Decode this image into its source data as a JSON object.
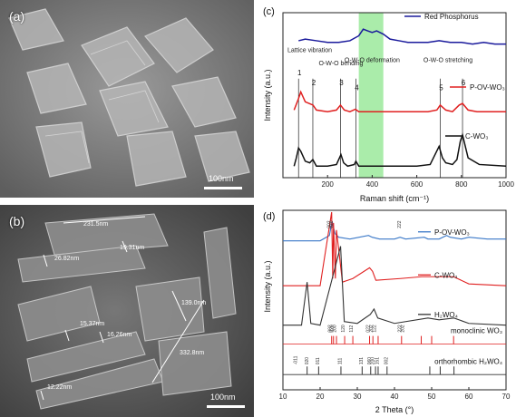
{
  "panel_a": {
    "label": "(a)",
    "scale_bar": "100nm"
  },
  "panel_b": {
    "label": "(b)",
    "scale_bar": "100nm",
    "measurements": [
      "231.5nm",
      "19.31nm",
      "26.82nm",
      "139.0nm",
      "15.37nm",
      "16.26nm",
      "332.8nm",
      "12.22nm"
    ]
  },
  "chart_data": [
    {
      "type": "line",
      "panel": "(c)",
      "xlabel": "Raman shift (cm⁻¹)",
      "ylabel": "Intensity (a.u.)",
      "xlim": [
        0,
        1000
      ],
      "xticks": [
        200,
        400,
        600,
        800,
        1000
      ],
      "highlight_range": [
        340,
        450
      ],
      "series": [
        {
          "name": "Red Phosphorus",
          "color": "#1a1a9c",
          "x": [
            70,
            100,
            150,
            200,
            250,
            300,
            340,
            360,
            380,
            400,
            420,
            450,
            480,
            520,
            560,
            600,
            650,
            700,
            750,
            800,
            850,
            900,
            950,
            1000
          ],
          "y": [
            0.83,
            0.84,
            0.83,
            0.82,
            0.82,
            0.83,
            0.86,
            0.9,
            0.89,
            0.88,
            0.89,
            0.87,
            0.84,
            0.83,
            0.82,
            0.82,
            0.82,
            0.83,
            0.82,
            0.82,
            0.81,
            0.82,
            0.81,
            0.81
          ]
        },
        {
          "name": "P-OV-WO₃",
          "color": "#e02020",
          "x": [
            50,
            70,
            80,
            100,
            135,
            150,
            200,
            240,
            258,
            275,
            300,
            325,
            340,
            400,
            500,
            600,
            650,
            690,
            705,
            730,
            760,
            790,
            805,
            830,
            870,
            920,
            1000
          ],
          "y": [
            0.41,
            0.48,
            0.52,
            0.46,
            0.44,
            0.41,
            0.4,
            0.41,
            0.44,
            0.41,
            0.4,
            0.415,
            0.4,
            0.4,
            0.4,
            0.4,
            0.4,
            0.41,
            0.44,
            0.41,
            0.4,
            0.44,
            0.45,
            0.41,
            0.4,
            0.4,
            0.4
          ]
        },
        {
          "name": "C-WO₃",
          "color": "#111111",
          "x": [
            50,
            60,
            70,
            80,
            100,
            120,
            134,
            150,
            200,
            240,
            260,
            272,
            290,
            320,
            327,
            340,
            400,
            500,
            600,
            660,
            700,
            715,
            730,
            760,
            780,
            795,
            805,
            830,
            880,
            1000
          ],
          "y": [
            0.07,
            0.12,
            0.18,
            0.16,
            0.1,
            0.09,
            0.11,
            0.07,
            0.07,
            0.08,
            0.14,
            0.09,
            0.07,
            0.08,
            0.1,
            0.07,
            0.07,
            0.07,
            0.07,
            0.08,
            0.19,
            0.12,
            0.09,
            0.08,
            0.11,
            0.22,
            0.26,
            0.12,
            0.08,
            0.07
          ]
        }
      ],
      "peaks": [
        {
          "n": "1",
          "x": 70
        },
        {
          "n": "2",
          "x": 134
        },
        {
          "n": "3",
          "x": 258
        },
        {
          "n": "4",
          "x": 327
        },
        {
          "n": "5",
          "x": 705
        },
        {
          "n": "6",
          "x": 805
        }
      ],
      "annotations": [
        "Lattice vibration",
        "O-W-O bending",
        "O-W-O deformation",
        "O-W-O stretching"
      ]
    },
    {
      "type": "line",
      "panel": "(d)",
      "xlabel": "2 Theta (°)",
      "ylabel": "Intensity (a.u.)",
      "xlim": [
        10,
        70
      ],
      "xticks": [
        10,
        20,
        30,
        40,
        50,
        60,
        70
      ],
      "series": [
        {
          "name": "P-OV-WO₃",
          "color": "#3a78c8",
          "x": [
            10,
            20,
            22.5,
            23.2,
            24,
            25,
            28,
            33,
            34,
            36,
            40,
            41.5,
            43,
            48,
            49,
            52,
            54,
            55,
            58,
            60,
            65,
            70
          ],
          "y": [
            0.83,
            0.83,
            0.86,
            0.94,
            0.87,
            0.85,
            0.84,
            0.86,
            0.85,
            0.84,
            0.84,
            0.85,
            0.84,
            0.85,
            0.84,
            0.84,
            0.86,
            0.85,
            0.84,
            0.85,
            0.84,
            0.84
          ]
        },
        {
          "name": "C-WO₃",
          "color": "#e02020",
          "x": [
            10,
            20,
            23.1,
            23.4,
            23.6,
            24.1,
            24.4,
            26,
            28.8,
            33.3,
            34.1,
            35,
            41.6,
            47.3,
            49.9,
            55.9,
            60,
            70
          ],
          "y": [
            0.58,
            0.58,
            0.99,
            0.62,
            0.93,
            0.62,
            0.89,
            0.6,
            0.62,
            0.68,
            0.66,
            0.61,
            0.62,
            0.63,
            0.63,
            0.63,
            0.59,
            0.58
          ]
        },
        {
          "name": "H₂WO₄",
          "color": "#333333",
          "x": [
            10,
            15,
            16.5,
            17.5,
            20,
            25.5,
            26.5,
            30,
            33.5,
            34.5,
            35.5,
            40,
            49,
            52,
            56,
            60,
            70
          ],
          "y": [
            0.36,
            0.36,
            0.6,
            0.37,
            0.36,
            0.8,
            0.38,
            0.37,
            0.42,
            0.45,
            0.4,
            0.37,
            0.4,
            0.39,
            0.4,
            0.37,
            0.36
          ]
        }
      ],
      "reference_patterns": [
        {
          "name": "monoclinic WO₃",
          "color": "#e02020",
          "x": [
            23.1,
            23.6,
            24.4,
            26.6,
            28.8,
            33.3,
            34.2,
            35.6,
            41.9,
            47.2,
            50.0,
            55.9
          ]
        },
        {
          "name": "orthorhombic H₂WO₄",
          "color": "#333333",
          "x": [
            16.5,
            19.6,
            25.6,
            31.3,
            33.6,
            34.9,
            35.6,
            38.0,
            49.5,
            52.3,
            56.0
          ]
        }
      ],
      "hkl_labels": {
        "p_ov": [
          "002",
          "020",
          "222"
        ],
        "c_wo3": [
          "002",
          "020",
          "200",
          "120",
          "112",
          "022",
          "202",
          "122",
          "222",
          "202"
        ],
        "h2wo4": [
          "-011",
          "020",
          "011",
          "111",
          "131",
          "060",
          "200",
          "151",
          "002"
        ]
      }
    }
  ]
}
